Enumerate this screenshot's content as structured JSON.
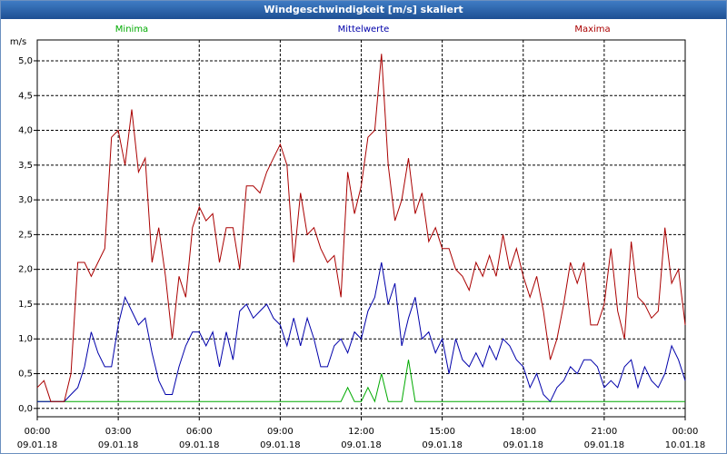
{
  "chart_data": {
    "type": "line",
    "title": "Windgeschwindigkeit [m/s] skaliert",
    "ylabel": "m/s",
    "x": [
      0,
      0.25,
      0.5,
      0.75,
      1,
      1.25,
      1.5,
      1.75,
      2,
      2.25,
      2.5,
      2.75,
      3,
      3.25,
      3.5,
      3.75,
      4,
      4.25,
      4.5,
      4.75,
      5,
      5.25,
      5.5,
      5.75,
      6,
      6.25,
      6.5,
      6.75,
      7,
      7.25,
      7.5,
      7.75,
      8,
      8.25,
      8.5,
      8.75,
      9,
      9.25,
      9.5,
      9.75,
      10,
      10.25,
      10.5,
      10.75,
      11,
      11.25,
      11.5,
      11.75,
      12,
      12.25,
      12.5,
      12.75,
      13,
      13.25,
      13.5,
      13.75,
      14,
      14.25,
      14.5,
      14.75,
      15,
      15.25,
      15.5,
      15.75,
      16,
      16.25,
      16.5,
      16.75,
      17,
      17.25,
      17.5,
      17.75,
      18,
      18.25,
      18.5,
      18.75,
      19,
      19.25,
      19.5,
      19.75,
      20,
      20.25,
      20.5,
      20.75,
      21,
      21.25,
      21.5,
      21.75,
      22,
      22.25,
      22.5,
      22.75,
      23,
      23.25,
      23.5,
      23.75,
      24
    ],
    "series": [
      {
        "name": "Minima",
        "color": "#00aa00",
        "values": [
          0.1,
          0.1,
          0.1,
          0.1,
          0.1,
          0.1,
          0.1,
          0.1,
          0.1,
          0.1,
          0.1,
          0.1,
          0.1,
          0.1,
          0.1,
          0.1,
          0.1,
          0.1,
          0.1,
          0.1,
          0.1,
          0.1,
          0.1,
          0.1,
          0.1,
          0.1,
          0.1,
          0.1,
          0.1,
          0.1,
          0.1,
          0.1,
          0.1,
          0.1,
          0.1,
          0.1,
          0.1,
          0.1,
          0.1,
          0.1,
          0.1,
          0.1,
          0.1,
          0.1,
          0.1,
          0.1,
          0.3,
          0.1,
          0.1,
          0.3,
          0.1,
          0.5,
          0.1,
          0.1,
          0.1,
          0.7,
          0.1,
          0.1,
          0.1,
          0.1,
          0.1,
          0.1,
          0.1,
          0.1,
          0.1,
          0.1,
          0.1,
          0.1,
          0.1,
          0.1,
          0.1,
          0.1,
          0.1,
          0.1,
          0.1,
          0.1,
          0.1,
          0.1,
          0.1,
          0.1,
          0.1,
          0.1,
          0.1,
          0.1,
          0.1,
          0.1,
          0.1,
          0.1,
          0.1,
          0.1,
          0.1,
          0.1,
          0.1,
          0.1,
          0.1,
          0.1,
          0.1
        ]
      },
      {
        "name": "Mittelwerte",
        "color": "#0000aa",
        "values": [
          0.1,
          0.1,
          0.1,
          0.1,
          0.1,
          0.2,
          0.3,
          0.6,
          1.1,
          0.8,
          0.6,
          0.6,
          1.2,
          1.6,
          1.4,
          1.2,
          1.3,
          0.8,
          0.4,
          0.2,
          0.2,
          0.6,
          0.9,
          1.1,
          1.1,
          0.9,
          1.1,
          0.6,
          1.1,
          0.7,
          1.4,
          1.5,
          1.3,
          1.4,
          1.5,
          1.3,
          1.2,
          0.9,
          1.3,
          0.9,
          1.3,
          1.0,
          0.6,
          0.6,
          0.9,
          1.0,
          0.8,
          1.1,
          1.0,
          1.4,
          1.6,
          2.1,
          1.5,
          1.8,
          0.9,
          1.3,
          1.6,
          1.0,
          1.1,
          0.8,
          1.0,
          0.5,
          1.0,
          0.7,
          0.6,
          0.8,
          0.6,
          0.9,
          0.7,
          1.0,
          0.9,
          0.7,
          0.6,
          0.3,
          0.5,
          0.2,
          0.1,
          0.3,
          0.4,
          0.6,
          0.5,
          0.7,
          0.7,
          0.6,
          0.3,
          0.4,
          0.3,
          0.6,
          0.7,
          0.3,
          0.6,
          0.4,
          0.3,
          0.5,
          0.9,
          0.7,
          0.4
        ]
      },
      {
        "name": "Maxima",
        "color": "#aa0000",
        "values": [
          0.3,
          0.4,
          0.1,
          0.1,
          0.1,
          0.5,
          2.1,
          2.1,
          1.9,
          2.1,
          2.3,
          3.9,
          4.0,
          3.5,
          4.3,
          3.4,
          3.6,
          2.1,
          2.6,
          1.9,
          1.0,
          1.9,
          1.6,
          2.6,
          2.9,
          2.7,
          2.8,
          2.1,
          2.6,
          2.6,
          2.0,
          3.2,
          3.2,
          3.1,
          3.4,
          3.6,
          3.8,
          3.5,
          2.1,
          3.1,
          2.5,
          2.6,
          2.3,
          2.1,
          2.2,
          1.6,
          3.4,
          2.8,
          3.2,
          3.9,
          4.0,
          5.1,
          3.5,
          2.7,
          3.0,
          3.6,
          2.8,
          3.1,
          2.4,
          2.6,
          2.3,
          2.3,
          2.0,
          1.9,
          1.7,
          2.1,
          1.9,
          2.2,
          1.9,
          2.5,
          2.0,
          2.3,
          1.9,
          1.6,
          1.9,
          1.4,
          0.7,
          1.0,
          1.5,
          2.1,
          1.8,
          2.1,
          1.2,
          1.2,
          1.5,
          2.3,
          1.4,
          1.0,
          2.4,
          1.6,
          1.5,
          1.3,
          1.4,
          2.6,
          1.8,
          2.0,
          1.2
        ]
      }
    ],
    "xlim": [
      0,
      24
    ],
    "xticks": [
      {
        "value": 0,
        "label": "00:00\n09.01.18"
      },
      {
        "value": 3,
        "label": "03:00\n09.01.18"
      },
      {
        "value": 6,
        "label": "06:00\n09.01.18"
      },
      {
        "value": 9,
        "label": "09:00\n09.01.18"
      },
      {
        "value": 12,
        "label": "12:00\n09.01.18"
      },
      {
        "value": 15,
        "label": "15:00\n09.01.18"
      },
      {
        "value": 18,
        "label": "18:00\n09.01.18"
      },
      {
        "value": 21,
        "label": "21:00\n09.01.18"
      },
      {
        "value": 24,
        "label": "00:00\n10.01.18"
      }
    ],
    "ylim": [
      -0.12,
      5.3
    ],
    "yticks": [
      {
        "value": 0,
        "label": "0,0"
      },
      {
        "value": 0.5,
        "label": "0,5"
      },
      {
        "value": 1,
        "label": "1,0"
      },
      {
        "value": 1.5,
        "label": "1,5"
      },
      {
        "value": 2,
        "label": "2,0"
      },
      {
        "value": 2.5,
        "label": "2,5"
      },
      {
        "value": 3,
        "label": "3,0"
      },
      {
        "value": 3.5,
        "label": "3,5"
      },
      {
        "value": 4,
        "label": "4,0"
      },
      {
        "value": 4.5,
        "label": "4,5"
      },
      {
        "value": 5,
        "label": "5,0"
      }
    ],
    "grid": true
  }
}
